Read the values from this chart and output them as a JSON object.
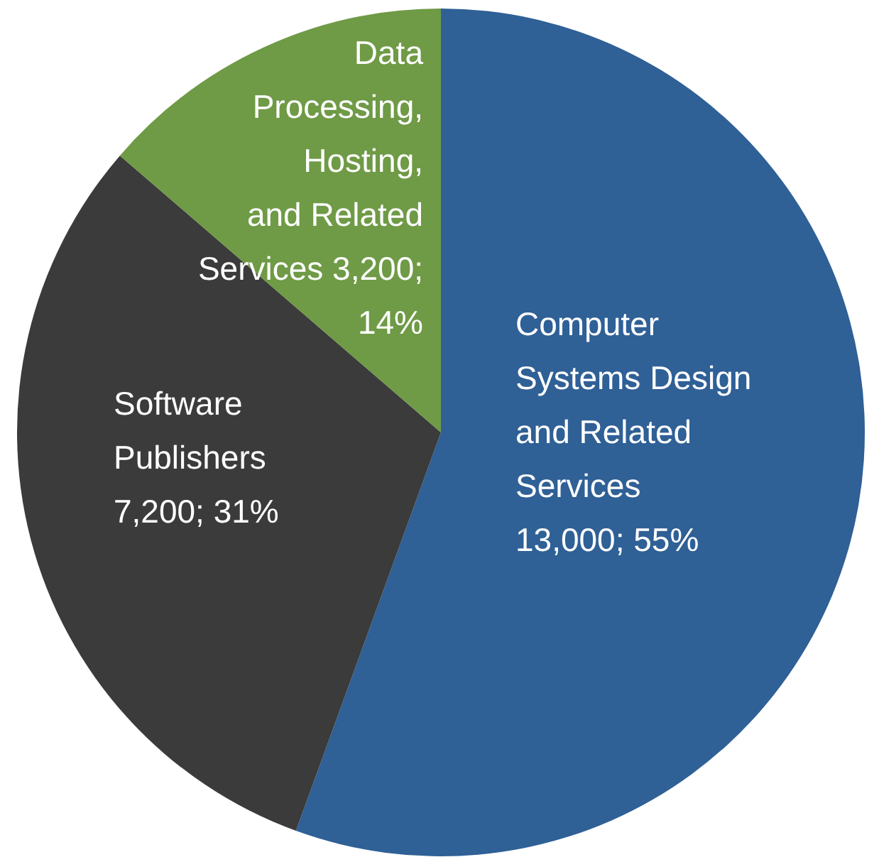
{
  "chart_data": {
    "type": "pie",
    "categories": [
      "Computer Systems Design and Related Services",
      "Software Publishers",
      "Data Processing, Hosting, and Related Services"
    ],
    "values": [
      13000,
      7200,
      3200
    ],
    "colors": [
      "#2f6096",
      "#3b3b3b",
      "#6f9a46"
    ],
    "value_labels": [
      "13,000; 55%",
      "7,200; 31%",
      "3,200; 14%"
    ]
  }
}
